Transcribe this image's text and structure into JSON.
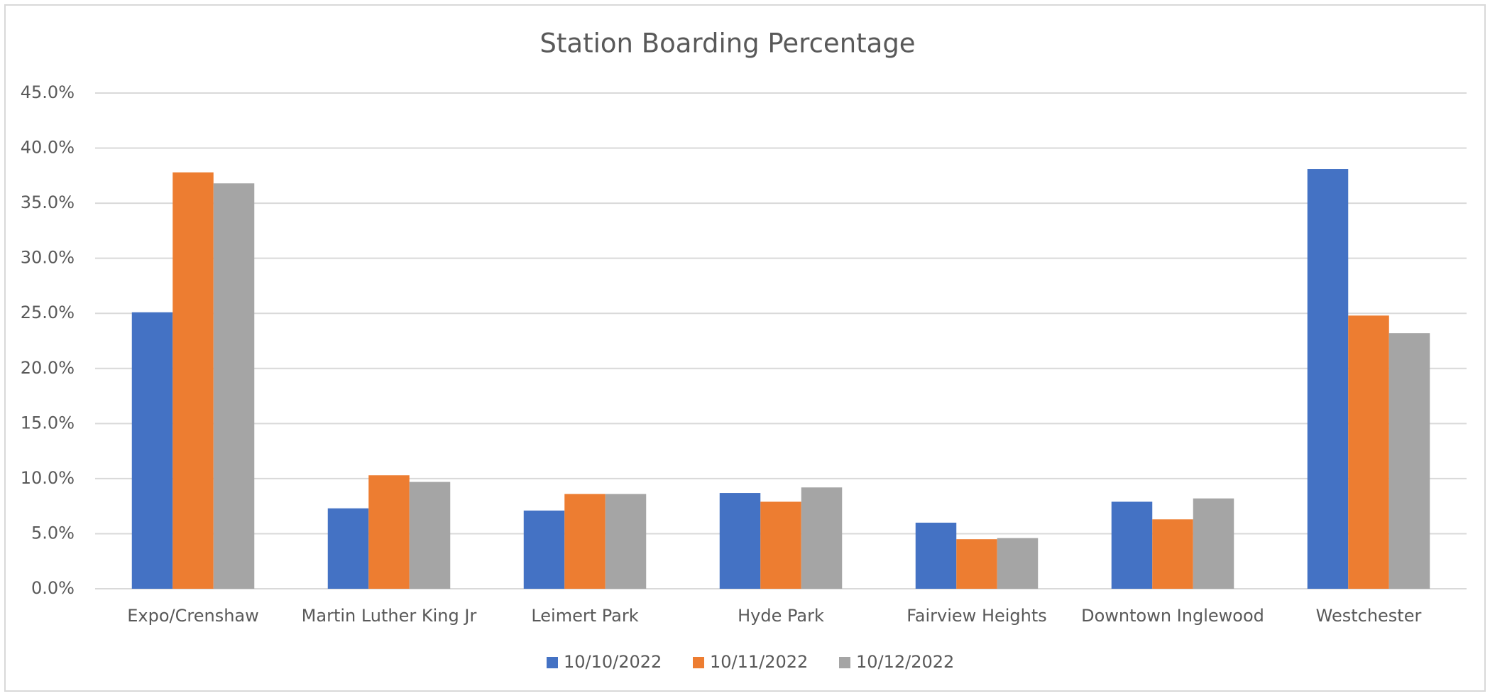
{
  "chart_data": {
    "type": "bar",
    "title": "Station Boarding Percentage",
    "categories": [
      "Expo/Crenshaw",
      "Martin Luther King Jr",
      "Leimert Park",
      "Hyde Park",
      "Fairview Heights",
      "Downtown Inglewood",
      "Westchester"
    ],
    "series": [
      {
        "name": "10/10/2022",
        "color": "#4472c4",
        "values": [
          25.1,
          7.3,
          7.1,
          8.7,
          6.0,
          7.9,
          38.1
        ]
      },
      {
        "name": "10/11/2022",
        "color": "#ed7d31",
        "values": [
          37.8,
          10.3,
          8.6,
          7.9,
          4.5,
          6.3,
          24.8
        ]
      },
      {
        "name": "10/12/2022",
        "color": "#a5a5a5",
        "values": [
          36.8,
          9.7,
          8.6,
          9.2,
          4.6,
          8.2,
          23.2
        ]
      }
    ],
    "ylim": [
      0,
      45
    ],
    "yticks": [
      {
        "value": 0,
        "label": "0.0%"
      },
      {
        "value": 5,
        "label": "5.0%"
      },
      {
        "value": 10,
        "label": "10.0%"
      },
      {
        "value": 15,
        "label": "15.0%"
      },
      {
        "value": 20,
        "label": "20.0%"
      },
      {
        "value": 25,
        "label": "25.0%"
      },
      {
        "value": 30,
        "label": "30.0%"
      },
      {
        "value": 35,
        "label": "35.0%"
      },
      {
        "value": 40,
        "label": "40.0%"
      },
      {
        "value": 45,
        "label": "45.0%"
      }
    ],
    "grid": true,
    "legend": "bottom"
  }
}
